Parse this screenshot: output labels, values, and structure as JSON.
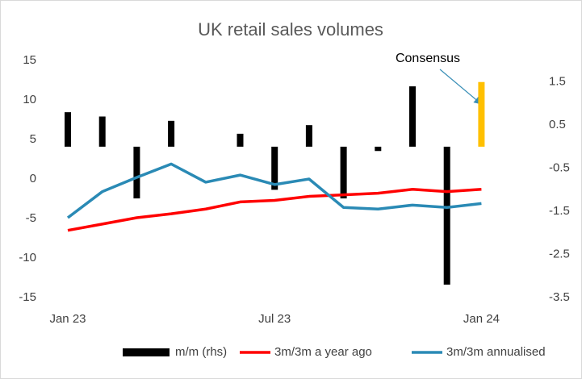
{
  "chart_data": {
    "type": "combo",
    "title": "UK retail sales volumes",
    "categories": [
      "Jan 23",
      null,
      null,
      null,
      null,
      null,
      "Jul 23",
      null,
      null,
      null,
      null,
      null,
      "Jan 24"
    ],
    "ylim": [
      -15,
      15
    ],
    "yticks": [
      -15,
      -10,
      -5,
      0,
      5,
      10,
      15
    ],
    "y2lim": [
      -3.5,
      2
    ],
    "y2ticks": [
      -3.5,
      -2.5,
      -1.5,
      -0.5,
      0.5,
      1.5
    ],
    "legend": "bottom",
    "series": [
      {
        "name": "m/m (rhs)",
        "type": "bar",
        "axis": "y2",
        "color": "#000000",
        "colors": [
          "#000000",
          "#000000",
          "#000000",
          "#000000",
          "#000000",
          "#000000",
          "#000000",
          "#000000",
          "#000000",
          "#000000",
          "#000000",
          "#000000",
          "#ffc000"
        ],
        "values": [
          0.8,
          0.7,
          -1.2,
          0.6,
          0,
          0.3,
          -1.0,
          0.5,
          -1.2,
          -0.1,
          1.4,
          -3.2,
          1.5
        ]
      },
      {
        "name": "3m/3m a year ago",
        "type": "line",
        "color": "#ff0000",
        "values": [
          -6.5,
          -5.7,
          -4.9,
          -4.4,
          -3.8,
          -2.9,
          -2.7,
          -2.2,
          -2.0,
          -1.8,
          -1.3,
          -1.6,
          -1.3
        ]
      },
      {
        "name": "3m/3m annualised",
        "type": "line",
        "color": "#2a8ab5",
        "values": [
          -4.9,
          -1.6,
          0.2,
          1.9,
          -0.4,
          0.5,
          -0.7,
          0.0,
          -3.6,
          -3.8,
          -3.3,
          -3.6,
          -3.1
        ]
      }
    ],
    "annotations": [
      {
        "text": "Consensus"
      }
    ]
  }
}
